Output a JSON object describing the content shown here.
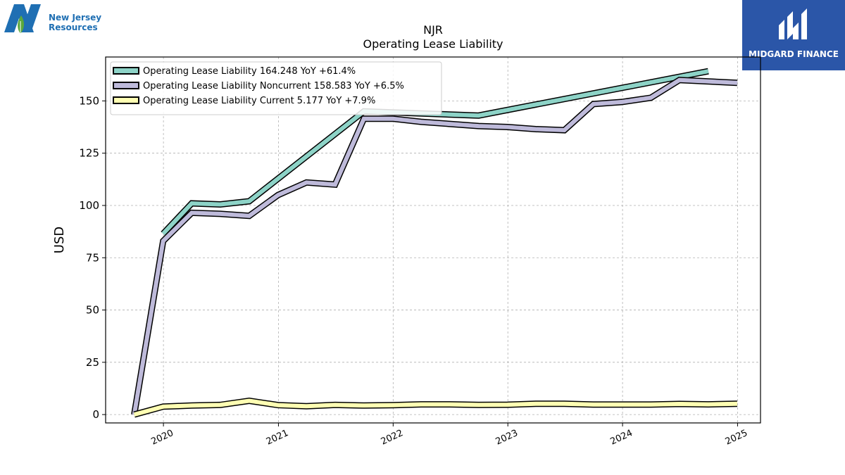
{
  "brand": {
    "left_logo_line1": "New Jersey",
    "left_logo_line2": "Resources",
    "right_logo_text": "MIDGARD FINANCE"
  },
  "chart_data": {
    "type": "line",
    "title": "NJR",
    "subtitle": "Operating Lease Liability",
    "ylabel": "USD",
    "xlabel": "",
    "xlim": [
      "2019-07-01",
      "2025-03-15"
    ],
    "ylim": [
      -4,
      171
    ],
    "yticks": [
      0,
      25,
      50,
      75,
      100,
      125,
      150
    ],
    "xticks": [
      "2020",
      "2021",
      "2022",
      "2023",
      "2024",
      "2025"
    ],
    "grid": true,
    "legend_position": "top-left",
    "series": [
      {
        "name": "Operating Lease Liability",
        "legend": "Operating Lease Liability  164.248 YoY +61.4%",
        "color": "#8dd3c7",
        "points": [
          [
            "2019-12-31",
            86.5
          ],
          [
            "2020-03-31",
            101.0
          ],
          [
            "2020-06-30",
            100.5
          ],
          [
            "2020-09-30",
            102.0
          ],
          [
            "2021-09-30",
            145.0
          ],
          [
            "2022-09-30",
            143.0
          ],
          [
            "2024-09-30",
            164.2
          ]
        ]
      },
      {
        "name": "Operating Lease Liability Noncurrent",
        "legend": "Operating Lease Liability Noncurrent  158.583 YoY +6.5%",
        "color": "#bebada",
        "points": [
          [
            "2019-09-30",
            0.0
          ],
          [
            "2019-12-31",
            83.0
          ],
          [
            "2020-03-31",
            96.5
          ],
          [
            "2020-06-30",
            96.0
          ],
          [
            "2020-09-30",
            95.0
          ],
          [
            "2020-12-31",
            105.0
          ],
          [
            "2021-03-31",
            111.0
          ],
          [
            "2021-06-30",
            110.0
          ],
          [
            "2021-09-30",
            141.5
          ],
          [
            "2021-12-31",
            141.5
          ],
          [
            "2022-03-31",
            140.0
          ],
          [
            "2022-06-30",
            139.0
          ],
          [
            "2022-09-30",
            138.0
          ],
          [
            "2022-12-31",
            137.5
          ],
          [
            "2023-03-31",
            136.5
          ],
          [
            "2023-06-30",
            136.0
          ],
          [
            "2023-09-30",
            148.5
          ],
          [
            "2023-12-31",
            149.5
          ],
          [
            "2024-03-31",
            151.5
          ],
          [
            "2024-06-30",
            160.0
          ],
          [
            "2024-12-31",
            158.6
          ]
        ]
      },
      {
        "name": "Operating Lease Liability Current",
        "legend": "Operating Lease Liability Current  5.177 YoY +7.9%",
        "color": "#ffffb3",
        "points": [
          [
            "2019-09-30",
            0.0
          ],
          [
            "2019-12-31",
            3.8
          ],
          [
            "2020-03-31",
            4.3
          ],
          [
            "2020-06-30",
            4.6
          ],
          [
            "2020-09-30",
            6.6
          ],
          [
            "2020-12-31",
            4.5
          ],
          [
            "2021-03-31",
            4.0
          ],
          [
            "2021-06-30",
            4.6
          ],
          [
            "2021-09-30",
            4.3
          ],
          [
            "2021-12-31",
            4.5
          ],
          [
            "2022-03-31",
            4.9
          ],
          [
            "2022-06-30",
            4.9
          ],
          [
            "2022-09-30",
            4.6
          ],
          [
            "2022-12-31",
            4.7
          ],
          [
            "2023-03-31",
            5.2
          ],
          [
            "2023-06-30",
            5.2
          ],
          [
            "2023-09-30",
            4.8
          ],
          [
            "2023-12-31",
            4.8
          ],
          [
            "2024-03-31",
            4.8
          ],
          [
            "2024-06-30",
            5.1
          ],
          [
            "2024-09-30",
            4.9
          ],
          [
            "2024-12-31",
            5.2
          ]
        ]
      }
    ]
  }
}
